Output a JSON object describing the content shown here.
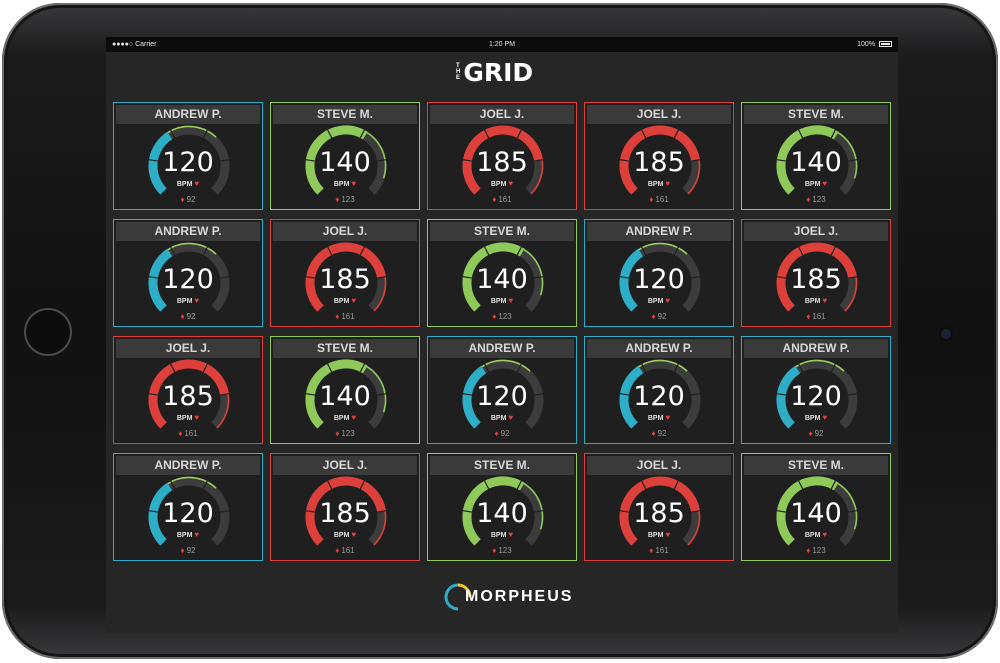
{
  "status_bar": {
    "carrier": "●●●●○ Carrier",
    "time": "1:20 PM",
    "battery": "100%"
  },
  "header": {
    "logo_small": "THE",
    "logo_main": "GRID"
  },
  "footer": {
    "brand": "MORPHEUS"
  },
  "colors": {
    "blue": "#2eaec6",
    "green": "#8fc95a",
    "red": "#dd3f3a",
    "track": "#3c3c3c",
    "tail_green": "#9ccd5e"
  },
  "tiles": [
    {
      "name": "ANDREW P.",
      "bpm": "120",
      "unit": "BPM",
      "calories": "92",
      "zone": "blue",
      "fill": 0.38
    },
    {
      "name": "STEVE M.",
      "bpm": "140",
      "unit": "BPM",
      "calories": "123",
      "zone": "green",
      "fill": 0.62
    },
    {
      "name": "JOEL J.",
      "bpm": "185",
      "unit": "BPM",
      "calories": "161",
      "zone": "red",
      "fill": 0.8
    },
    {
      "name": "JOEL J.",
      "bpm": "185",
      "unit": "BPM",
      "calories": "161",
      "zone": "red",
      "fill": 0.8
    },
    {
      "name": "STEVE M.",
      "bpm": "140",
      "unit": "BPM",
      "calories": "123",
      "zone": "green",
      "fill": 0.62
    },
    {
      "name": "ANDREW P.",
      "bpm": "120",
      "unit": "BPM",
      "calories": "92",
      "zone": "blue",
      "fill": 0.38
    },
    {
      "name": "JOEL J.",
      "bpm": "185",
      "unit": "BPM",
      "calories": "161",
      "zone": "red",
      "fill": 0.8
    },
    {
      "name": "STEVE M.",
      "bpm": "140",
      "unit": "BPM",
      "calories": "123",
      "zone": "green",
      "fill": 0.62
    },
    {
      "name": "ANDREW P.",
      "bpm": "120",
      "unit": "BPM",
      "calories": "92",
      "zone": "blue",
      "fill": 0.38
    },
    {
      "name": "JOEL J.",
      "bpm": "185",
      "unit": "BPM",
      "calories": "161",
      "zone": "red",
      "fill": 0.8
    },
    {
      "name": "JOEL J.",
      "bpm": "185",
      "unit": "BPM",
      "calories": "161",
      "zone": "red",
      "fill": 0.8
    },
    {
      "name": "STEVE M.",
      "bpm": "140",
      "unit": "BPM",
      "calories": "123",
      "zone": "green",
      "fill": 0.62
    },
    {
      "name": "ANDREW P.",
      "bpm": "120",
      "unit": "BPM",
      "calories": "92",
      "zone": "blue",
      "fill": 0.38
    },
    {
      "name": "ANDREW P.",
      "bpm": "120",
      "unit": "BPM",
      "calories": "92",
      "zone": "blue",
      "fill": 0.38
    },
    {
      "name": "ANDREW P.",
      "bpm": "120",
      "unit": "BPM",
      "calories": "92",
      "zone": "blue",
      "fill": 0.38
    },
    {
      "name": "ANDREW P.",
      "bpm": "120",
      "unit": "BPM",
      "calories": "92",
      "zone": "blue",
      "fill": 0.38
    },
    {
      "name": "JOEL J.",
      "bpm": "185",
      "unit": "BPM",
      "calories": "161",
      "zone": "red",
      "fill": 0.8
    },
    {
      "name": "STEVE M.",
      "bpm": "140",
      "unit": "BPM",
      "calories": "123",
      "zone": "green",
      "fill": 0.62
    },
    {
      "name": "JOEL J.",
      "bpm": "185",
      "unit": "BPM",
      "calories": "161",
      "zone": "red",
      "fill": 0.8
    },
    {
      "name": "STEVE M.",
      "bpm": "140",
      "unit": "BPM",
      "calories": "123",
      "zone": "green",
      "fill": 0.62
    }
  ]
}
